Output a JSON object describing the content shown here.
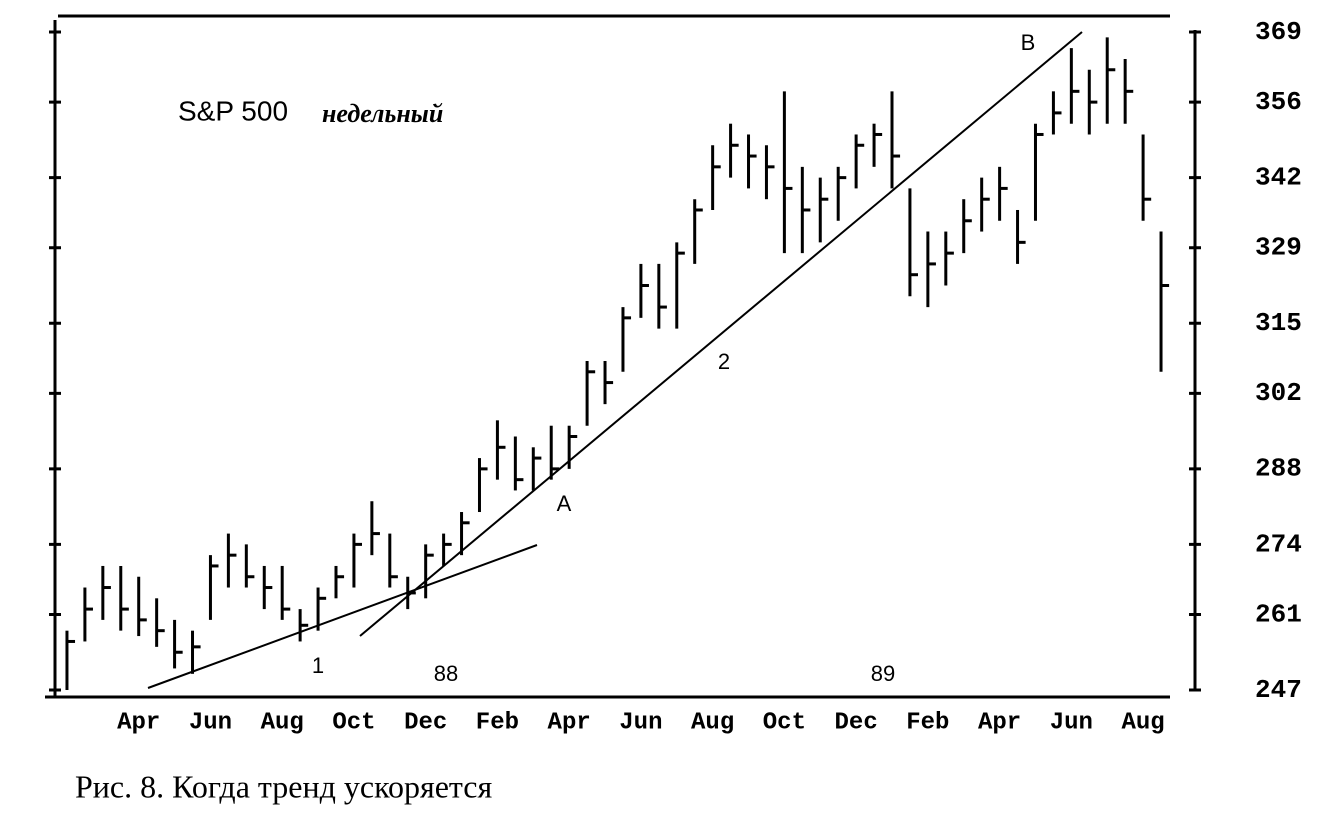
{
  "chart_data": {
    "type": "ohlc",
    "title": "S&P 500",
    "subtitle": "недельный",
    "caption": "Рис. 8. Когда тренд ускоряется",
    "categories": [
      null,
      null,
      null,
      null,
      "Apr",
      null,
      null,
      null,
      "Jun",
      null,
      null,
      null,
      "Aug",
      null,
      null,
      null,
      "Oct",
      null,
      null,
      null,
      "Dec",
      null,
      null,
      null,
      "Feb",
      null,
      null,
      null,
      "Apr",
      null,
      null,
      null,
      "Jun",
      null,
      null,
      null,
      "Aug",
      null,
      null,
      null,
      "Oct",
      null,
      null,
      null,
      "Dec",
      null,
      null,
      null,
      "Feb",
      null,
      null,
      null,
      "Apr",
      null,
      null,
      null,
      "Jun",
      null,
      null,
      null,
      "Aug",
      null
    ],
    "high": [
      258,
      266,
      270,
      270,
      268,
      264,
      260,
      258,
      272,
      276,
      274,
      270,
      270,
      262,
      266,
      270,
      276,
      282,
      276,
      268,
      274,
      276,
      280,
      290,
      297,
      294,
      292,
      296,
      296,
      308,
      308,
      318,
      326,
      326,
      330,
      338,
      348,
      352,
      350,
      348,
      358,
      344,
      342,
      344,
      350,
      352,
      358,
      340,
      332,
      332,
      338,
      342,
      344,
      336,
      352,
      358,
      366,
      362,
      368,
      364,
      350,
      332
    ],
    "low": [
      247,
      256,
      260,
      258,
      257,
      255,
      251,
      250,
      260,
      266,
      266,
      262,
      260,
      256,
      258,
      264,
      266,
      272,
      266,
      262,
      264,
      270,
      272,
      280,
      286,
      284,
      284,
      286,
      288,
      296,
      300,
      306,
      316,
      314,
      314,
      326,
      336,
      342,
      340,
      338,
      328,
      328,
      330,
      334,
      340,
      344,
      340,
      320,
      318,
      322,
      328,
      332,
      334,
      326,
      334,
      350,
      352,
      350,
      352,
      352,
      334,
      306
    ],
    "close": [
      256,
      262,
      266,
      262,
      260,
      258,
      254,
      255,
      270,
      272,
      268,
      266,
      262,
      259,
      264,
      268,
      274,
      276,
      268,
      265,
      272,
      274,
      278,
      288,
      292,
      286,
      290,
      288,
      294,
      306,
      304,
      316,
      322,
      318,
      328,
      336,
      344,
      348,
      346,
      344,
      340,
      336,
      338,
      342,
      348,
      350,
      346,
      324,
      326,
      328,
      334,
      338,
      340,
      330,
      350,
      354,
      358,
      356,
      362,
      358,
      338,
      322
    ],
    "color": "#000000",
    "ylim": [
      247,
      369
    ],
    "yticks": [
      247,
      261,
      274,
      288,
      302,
      315,
      329,
      342,
      356,
      369
    ],
    "annotations": [
      "1",
      "88",
      "A",
      "2",
      "89",
      "B"
    ]
  }
}
